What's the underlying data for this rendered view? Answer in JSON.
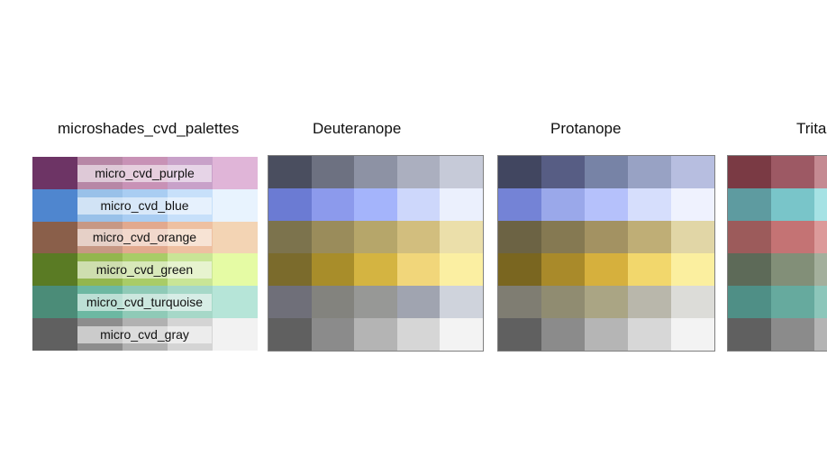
{
  "panels": [
    {
      "title": "microshades_cvd_palettes",
      "labels": [
        "micro_cvd_purple",
        "micro_cvd_blue",
        "micro_cvd_orange",
        "micro_cvd_green",
        "micro_cvd_turquoise",
        "micro_cvd_gray"
      ],
      "rows": [
        [
          "#6d3465",
          "#b787a6",
          "#c892b6",
          "#c8a1c9",
          "#e0b5d8"
        ],
        [
          "#4f86cf",
          "#99c1e9",
          "#a9cdf2",
          "#c7e0fa",
          "#e8f3fe"
        ],
        [
          "#8a5f4a",
          "#c79884",
          "#e2a98e",
          "#eec0a1",
          "#f3d4b4"
        ],
        [
          "#5a7b24",
          "#93b64e",
          "#a9cc67",
          "#c9e596",
          "#e5fba4"
        ],
        [
          "#4b8c78",
          "#6cb8a2",
          "#8fcab7",
          "#a6d8c8",
          "#b6e5d8"
        ],
        [
          "#606060",
          "#8d8d8d",
          "#b1b1b1",
          "#d4d4d4",
          "#f2f2f2"
        ]
      ]
    },
    {
      "title": "Deuteranope",
      "rows": [
        [
          "#4a4e5f",
          "#6d7181",
          "#8d92a4",
          "#abafbf",
          "#c6cad8"
        ],
        [
          "#6b7bd3",
          "#8c9aec",
          "#a4b4fb",
          "#cdd7fb",
          "#ebf0fd"
        ],
        [
          "#7c734d",
          "#9a8c5b",
          "#b6a66a",
          "#d2be7e",
          "#ebdfaa"
        ],
        [
          "#7b6b2c",
          "#a88d2a",
          "#d4b441",
          "#f1d67a",
          "#fbefa2"
        ],
        [
          "#6f6f79",
          "#83837e",
          "#979896",
          "#a0a4b0",
          "#cfd3dc"
        ],
        [
          "#606060",
          "#8b8b8b",
          "#b4b4b4",
          "#d6d6d6",
          "#f3f3f3"
        ]
      ]
    },
    {
      "title": "Protanope",
      "rows": [
        [
          "#414660",
          "#575d84",
          "#7783a6",
          "#98a2c4",
          "#b7bee0"
        ],
        [
          "#7483d6",
          "#9aa8ea",
          "#b5c1fb",
          "#d6defc",
          "#eff2fe"
        ],
        [
          "#6c6344",
          "#857952",
          "#a39262",
          "#bfae76",
          "#e1d6a6"
        ],
        [
          "#7a6620",
          "#a98a2a",
          "#d6b03d",
          "#f2d76c",
          "#fbef9f"
        ],
        [
          "#7f7d72",
          "#908c71",
          "#aaa584",
          "#b9b7ab",
          "#dcdcd8"
        ],
        [
          "#606060",
          "#8b8b8b",
          "#b5b5b5",
          "#d7d7d7",
          "#f3f3f3"
        ]
      ]
    },
    {
      "title": "Tritanope",
      "rows": [
        [
          "#7a3a44",
          "#9d5964",
          "#c48a92"
        ],
        [
          "#5e9ba0",
          "#79c5c9",
          "#a6e2e4"
        ],
        [
          "#9c5b5b",
          "#c47374",
          "#dc9a9a"
        ],
        [
          "#5d6a58",
          "#828f78",
          "#a3af9c"
        ],
        [
          "#4f8f86",
          "#66aa9e",
          "#8cc6ba"
        ],
        [
          "#606060",
          "#8b8b8b",
          "#b4b4b4"
        ]
      ]
    }
  ]
}
